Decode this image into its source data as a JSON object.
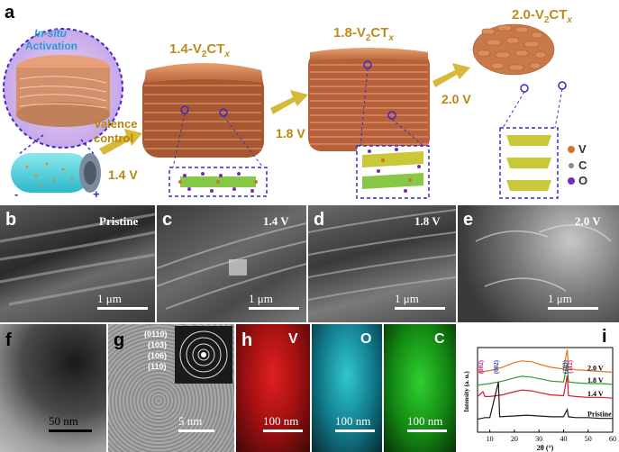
{
  "panel_a": {
    "letter": "a",
    "insitu_line1": "In-situ",
    "insitu_line2": "Activation",
    "stage1_prefix": "1.4-V",
    "stage1_sub1": "2",
    "stage1_mid": "CT",
    "stage1_sub2": "x",
    "stage2_prefix": "1.8-V",
    "stage2_sub1": "2",
    "stage2_mid": "CT",
    "stage2_sub2": "x",
    "stage3_prefix": "2.0-V",
    "stage3_sub1": "2",
    "stage3_mid": "CT",
    "stage3_sub2": "x",
    "valence_line1": "Valence",
    "valence_line2": "control",
    "v1": "1.4 V",
    "v2": "1.8 V",
    "v3": "2.0 V",
    "minus": "-",
    "plus": "+",
    "legend": [
      {
        "label": "V",
        "color": "#c87a28"
      },
      {
        "label": "C",
        "color": "#8a8a8a"
      },
      {
        "label": "O",
        "color": "#7a28b8"
      }
    ]
  },
  "sem": [
    {
      "letter": "b",
      "tag": "Pristine",
      "scale": "1 μm"
    },
    {
      "letter": "c",
      "tag": "1.4 V",
      "scale": "1 μm"
    },
    {
      "letter": "d",
      "tag": "1.8 V",
      "scale": "1 μm"
    },
    {
      "letter": "e",
      "tag": "2.0 V",
      "scale": "1 μm"
    }
  ],
  "panel_f": {
    "letter": "f",
    "scale": "50 nm"
  },
  "panel_g": {
    "letter": "g",
    "scale": "5 nm",
    "rings": [
      "(0110)",
      "(103)",
      "(106)",
      "(110)"
    ]
  },
  "panel_h": {
    "letter": "h",
    "maps": [
      {
        "element": "V",
        "scale": "100 nm",
        "color": "#d81818"
      },
      {
        "element": "O",
        "scale": "100 nm",
        "color": "#18b0b8"
      },
      {
        "element": "C",
        "scale": "100 nm",
        "color": "#18b018"
      }
    ]
  },
  "chart_data": {
    "type": "line",
    "letter": "i",
    "xlabel": "2θ (°)",
    "ylabel": "Intensity (a. u.)",
    "xlim": [
      5,
      60
    ],
    "xticks": [
      10,
      20,
      30,
      40,
      50,
      60
    ],
    "peak_labels": [
      {
        "text": "(002)",
        "x": 7.2,
        "color": "#c81890"
      },
      {
        "text": "(002)",
        "x": 13.5,
        "color": "#2a3a9a"
      },
      {
        "text": "(103)",
        "x": 41.5,
        "color": "#2a3a9a"
      },
      {
        "text": "(112)",
        "x": 43.5,
        "color": "#c81890"
      }
    ],
    "series": [
      {
        "name": "2.0 V",
        "color": "#e07818",
        "offset": 0.78,
        "x": [
          5,
          10,
          15,
          20,
          23,
          27,
          30,
          35,
          40,
          41.5,
          42,
          45,
          50,
          55,
          60
        ],
        "y": [
          0.74,
          0.76,
          0.8,
          0.86,
          0.88,
          0.87,
          0.84,
          0.8,
          0.78,
          1.02,
          0.79,
          0.77,
          0.76,
          0.75,
          0.74
        ]
      },
      {
        "name": "1.8 V",
        "color": "#2aa02a",
        "offset": 0.62,
        "x": [
          5,
          10,
          15,
          20,
          23,
          27,
          30,
          35,
          40,
          41.5,
          42,
          45,
          50,
          55,
          60
        ],
        "y": [
          0.58,
          0.6,
          0.63,
          0.67,
          0.69,
          0.68,
          0.66,
          0.63,
          0.62,
          0.85,
          0.62,
          0.61,
          0.6,
          0.6,
          0.59
        ]
      },
      {
        "name": "1.4 V",
        "color": "#d81830",
        "offset": 0.45,
        "x": [
          5,
          7.2,
          8,
          10,
          15,
          20,
          23,
          27,
          30,
          35,
          40,
          41.5,
          42,
          45,
          50,
          55,
          60
        ],
        "y": [
          0.44,
          0.5,
          0.44,
          0.44,
          0.46,
          0.5,
          0.52,
          0.51,
          0.49,
          0.46,
          0.45,
          0.7,
          0.45,
          0.44,
          0.43,
          0.43,
          0.42
        ]
      },
      {
        "name": "Pristine",
        "color": "#1a1a1a",
        "offset": 0.18,
        "x": [
          5,
          8,
          10,
          13.5,
          14,
          20,
          25,
          30,
          35,
          40,
          41.5,
          42,
          45,
          50,
          55,
          60
        ],
        "y": [
          0.16,
          0.18,
          0.18,
          0.62,
          0.19,
          0.2,
          0.21,
          0.2,
          0.19,
          0.19,
          0.28,
          0.19,
          0.18,
          0.18,
          0.17,
          0.17
        ]
      }
    ]
  }
}
